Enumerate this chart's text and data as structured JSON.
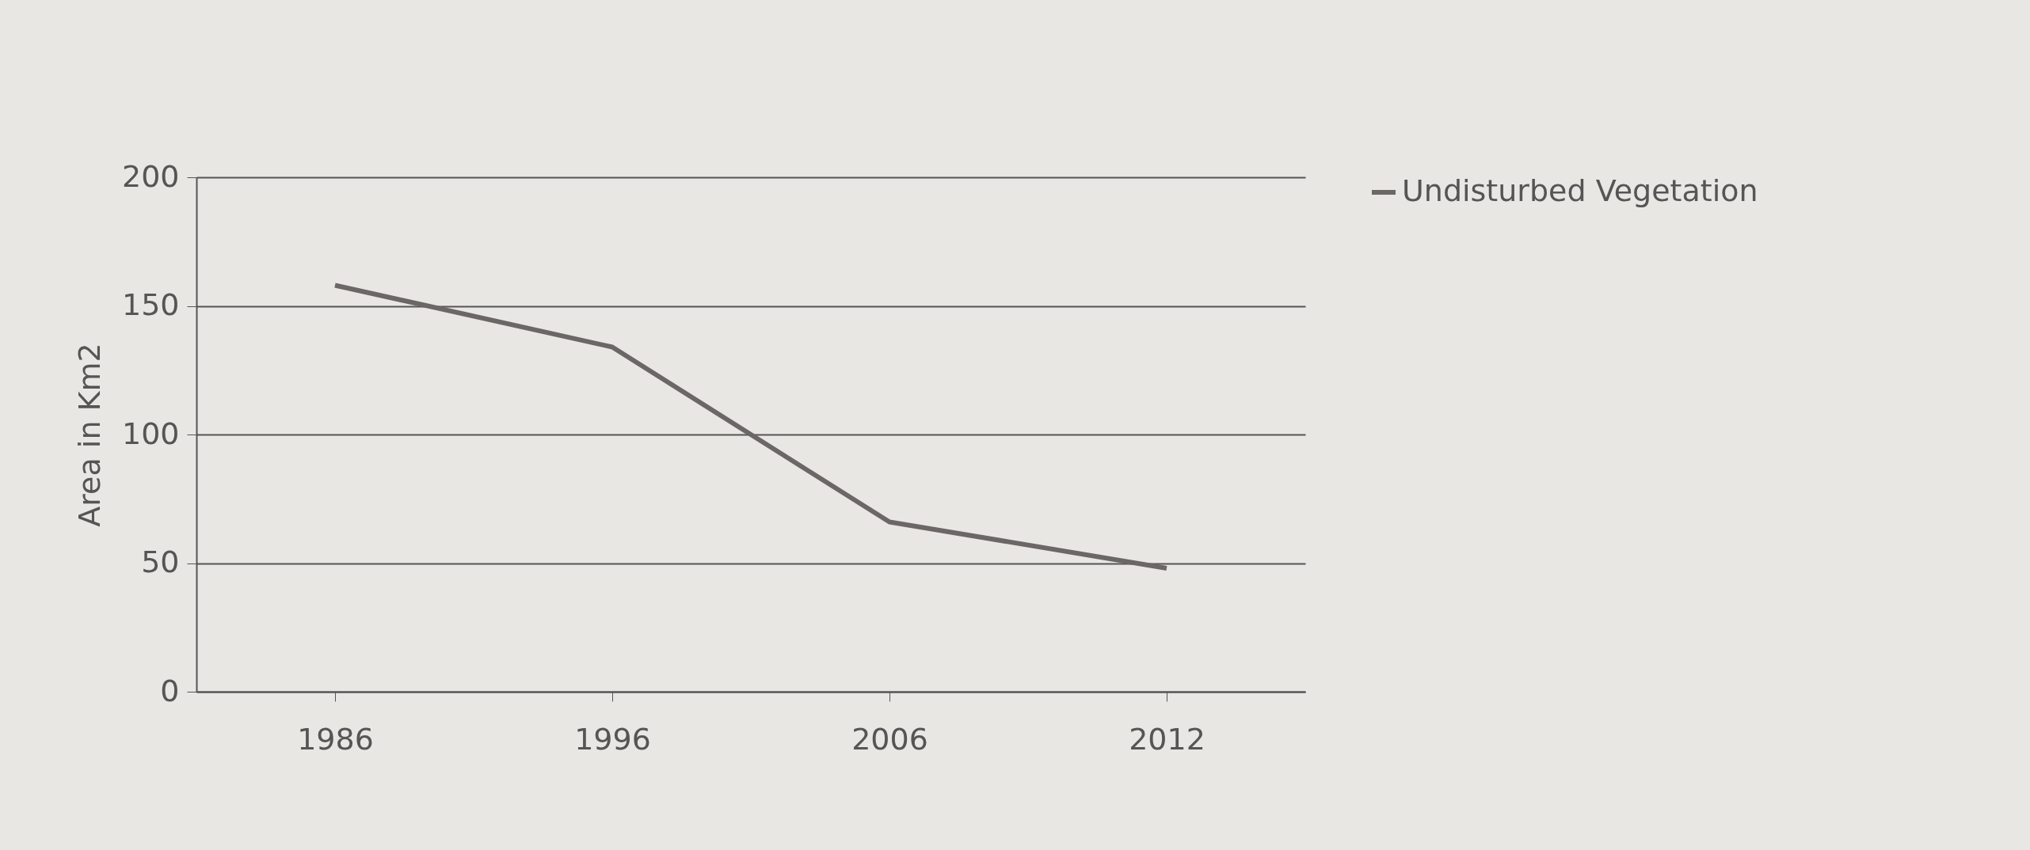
{
  "chart_data": {
    "type": "line",
    "ylabel": "Area in Km2",
    "categories": [
      "1986",
      "1996",
      "2006",
      "2012"
    ],
    "series": [
      {
        "name": "Undisturbed Vegetation",
        "color": "#6b6766",
        "values": [
          158,
          134,
          66,
          48
        ]
      }
    ],
    "ylim": [
      0,
      200
    ],
    "yticks": [
      0,
      50,
      100,
      150,
      200
    ],
    "grid": "y",
    "legend": "right",
    "marker": "none",
    "line_style": "solid"
  }
}
